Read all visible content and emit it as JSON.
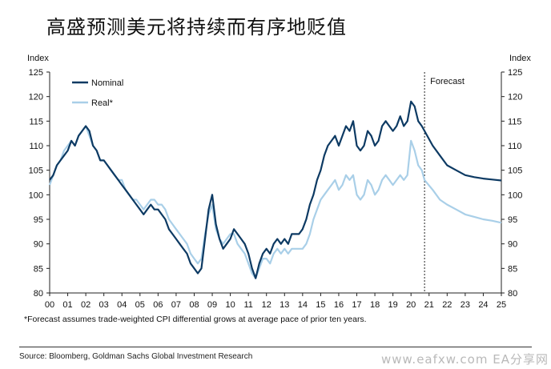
{
  "title": "高盛预测美元将持续而有序地贬值",
  "footnote": "*Forecast assumes trade-weighted CPI differential grows at average pace of prior ten years.",
  "source": "Source: Bloomberg, Goldman Sachs Global Investment Research",
  "watermark": "www.eafxw.com  EA分享网",
  "chart_data": {
    "type": "line",
    "ylabel_left": "Index",
    "ylabel_right": "Index",
    "ylim": [
      80,
      125
    ],
    "yticks": [
      80,
      85,
      90,
      95,
      100,
      105,
      110,
      115,
      120,
      125
    ],
    "xlim": [
      0,
      25
    ],
    "xticks": [
      "00",
      "01",
      "02",
      "03",
      "04",
      "05",
      "06",
      "07",
      "08",
      "09",
      "10",
      "11",
      "12",
      "13",
      "14",
      "15",
      "16",
      "17",
      "18",
      "19",
      "20",
      "21",
      "22",
      "23",
      "24",
      "25"
    ],
    "annotation": "Forecast",
    "forecast_start": 20.75,
    "colors": {
      "nominal": "#0d3a63",
      "real": "#a9cfe8"
    },
    "series": [
      {
        "name": "Nominal",
        "x": [
          0,
          0.2,
          0.4,
          0.6,
          0.8,
          1.0,
          1.2,
          1.4,
          1.6,
          1.8,
          2.0,
          2.2,
          2.4,
          2.6,
          2.8,
          3.0,
          3.2,
          3.4,
          3.6,
          3.8,
          4.0,
          4.2,
          4.4,
          4.6,
          4.8,
          5.0,
          5.2,
          5.4,
          5.6,
          5.8,
          6.0,
          6.2,
          6.4,
          6.6,
          6.8,
          7.0,
          7.2,
          7.4,
          7.6,
          7.8,
          8.0,
          8.2,
          8.4,
          8.6,
          8.8,
          9.0,
          9.2,
          9.4,
          9.6,
          9.8,
          10.0,
          10.2,
          10.4,
          10.6,
          10.8,
          11.0,
          11.2,
          11.4,
          11.6,
          11.8,
          12.0,
          12.2,
          12.4,
          12.6,
          12.8,
          13.0,
          13.2,
          13.4,
          13.6,
          13.8,
          14.0,
          14.2,
          14.4,
          14.6,
          14.8,
          15.0,
          15.2,
          15.4,
          15.6,
          15.8,
          16.0,
          16.2,
          16.4,
          16.6,
          16.8,
          17.0,
          17.2,
          17.4,
          17.6,
          17.8,
          18.0,
          18.2,
          18.4,
          18.6,
          18.8,
          19.0,
          19.2,
          19.4,
          19.6,
          19.8,
          20.0,
          20.2,
          20.4,
          20.6,
          20.75,
          21.2,
          21.6,
          22.0,
          22.5,
          23.0,
          23.5,
          24.0,
          24.5,
          25.0
        ],
        "values": [
          103,
          104,
          106,
          107,
          108,
          109,
          111,
          110,
          112,
          113,
          114,
          113,
          110,
          109,
          107,
          107,
          106,
          105,
          104,
          103,
          102,
          101,
          100,
          99,
          98,
          97,
          96,
          97,
          98,
          97,
          97,
          96,
          95,
          93,
          92,
          91,
          90,
          89,
          88,
          86,
          85,
          84,
          85,
          91,
          97,
          100,
          94,
          91,
          89,
          90,
          91,
          93,
          92,
          91,
          90,
          88,
          85,
          83,
          86,
          88,
          89,
          88,
          90,
          91,
          90,
          91,
          90,
          92,
          92,
          92,
          93,
          95,
          98,
          100,
          103,
          105,
          108,
          110,
          111,
          112,
          110,
          112,
          114,
          113,
          115,
          110,
          109,
          110,
          113,
          112,
          110,
          111,
          114,
          115,
          114,
          113,
          114,
          116,
          114,
          115,
          119,
          118,
          115,
          114,
          113,
          110,
          108,
          106,
          105,
          104,
          103.6,
          103.3,
          103.1,
          102.9
        ],
        "values_note": ""
      },
      {
        "name": "Real*",
        "x": [
          0,
          0.2,
          0.4,
          0.6,
          0.8,
          1.0,
          1.2,
          1.4,
          1.6,
          1.8,
          2.0,
          2.2,
          2.4,
          2.6,
          2.8,
          3.0,
          3.2,
          3.4,
          3.6,
          3.8,
          4.0,
          4.2,
          4.4,
          4.6,
          4.8,
          5.0,
          5.2,
          5.4,
          5.6,
          5.8,
          6.0,
          6.2,
          6.4,
          6.6,
          6.8,
          7.0,
          7.2,
          7.4,
          7.6,
          7.8,
          8.0,
          8.2,
          8.4,
          8.6,
          8.8,
          9.0,
          9.2,
          9.4,
          9.6,
          9.8,
          10.0,
          10.2,
          10.4,
          10.6,
          10.8,
          11.0,
          11.2,
          11.4,
          11.6,
          11.8,
          12.0,
          12.2,
          12.4,
          12.6,
          12.8,
          13.0,
          13.2,
          13.4,
          13.6,
          13.8,
          14.0,
          14.2,
          14.4,
          14.6,
          14.8,
          15.0,
          15.2,
          15.4,
          15.6,
          15.8,
          16.0,
          16.2,
          16.4,
          16.6,
          16.8,
          17.0,
          17.2,
          17.4,
          17.6,
          17.8,
          18.0,
          18.2,
          18.4,
          18.6,
          18.8,
          19.0,
          19.2,
          19.4,
          19.6,
          19.8,
          20.0,
          20.2,
          20.4,
          20.6,
          20.75,
          21.2,
          21.6,
          22.0,
          22.5,
          23.0,
          23.5,
          24.0,
          24.5,
          25.0
        ],
        "values": [
          102,
          104,
          106,
          107,
          109,
          110,
          111,
          110,
          112,
          113,
          114,
          112,
          110,
          109,
          107,
          107,
          106,
          105,
          104,
          103,
          103,
          101,
          100,
          99,
          99,
          98,
          97,
          98,
          99,
          99,
          98,
          98,
          97,
          95,
          94,
          93,
          92,
          91,
          90,
          88,
          87,
          86,
          87,
          92,
          96,
          98,
          93,
          91,
          90,
          91,
          92,
          92,
          90,
          89,
          88,
          86,
          84,
          83,
          85,
          87,
          87,
          86,
          88,
          89,
          88,
          89,
          88,
          89,
          89,
          89,
          89,
          90,
          92,
          95,
          97,
          99,
          100,
          101,
          102,
          103,
          101,
          102,
          104,
          103,
          104,
          100,
          99,
          100,
          103,
          102,
          100,
          101,
          103,
          104,
          103,
          102,
          103,
          104,
          103,
          104,
          111,
          109,
          106,
          105,
          103,
          101,
          99,
          98,
          97,
          96,
          95.5,
          95,
          94.7,
          94.3
        ]
      }
    ]
  }
}
